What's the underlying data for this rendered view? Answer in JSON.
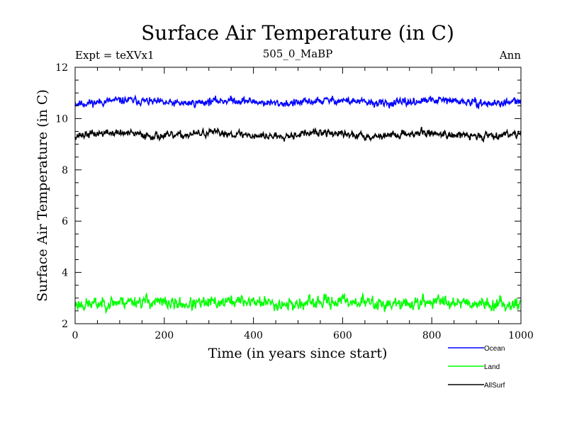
{
  "chart_data": {
    "type": "line",
    "title": "Surface Air Temperature (in C)",
    "subtitle_left": "Expt = teXVx1",
    "subtitle_center": "505_0_MaBP",
    "subtitle_right": "Ann",
    "xlabel": "Time (in years since start)",
    "ylabel": "Surface Air Temperature (in C)",
    "xlim": [
      0,
      1000
    ],
    "ylim": [
      2,
      12
    ],
    "xticks": [
      0,
      200,
      400,
      600,
      800,
      1000
    ],
    "yticks": [
      2,
      4,
      6,
      8,
      10,
      12
    ],
    "xtick_labels": [
      "0",
      "200",
      "400",
      "600",
      "800",
      "1000"
    ],
    "ytick_labels": [
      "2",
      "4",
      "6",
      "8",
      "10",
      "12"
    ],
    "legend_position": "bottom-right, outside plot",
    "series": [
      {
        "name": "Ocean",
        "color": "#0000ff",
        "mean": 10.65,
        "amplitude": 0.12,
        "seed": 11
      },
      {
        "name": "Land",
        "color": "#00ff00",
        "mean": 2.82,
        "amplitude": 0.2,
        "seed": 23
      },
      {
        "name": "AllSurf",
        "color": "#000000",
        "mean": 9.38,
        "amplitude": 0.12,
        "seed": 37
      }
    ]
  }
}
